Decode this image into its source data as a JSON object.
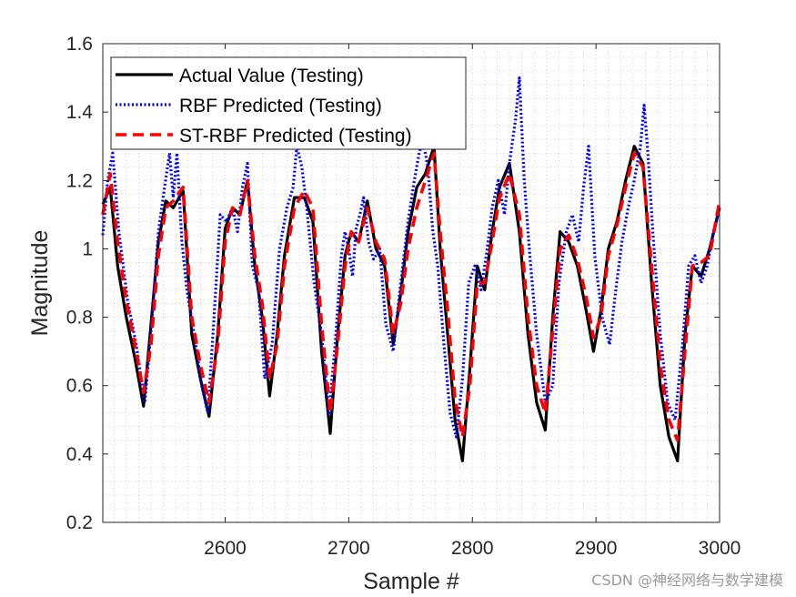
{
  "chart_data": {
    "type": "line",
    "title": "",
    "xlabel": "Sample #",
    "ylabel": "Magnitude",
    "xlim": [
      2501,
      3000
    ],
    "ylim": [
      0.2,
      1.6
    ],
    "x_ticks": [
      2600,
      2700,
      2800,
      2900,
      3000
    ],
    "y_ticks": [
      0.2,
      0.4,
      0.6,
      0.8,
      1,
      1.2,
      1.4,
      1.6
    ],
    "x_tick_labels": [
      "2600",
      "2700",
      "2800",
      "2900",
      "3000"
    ],
    "y_tick_labels": [
      "0.2",
      "0.4",
      "0.6",
      "0.8",
      "1",
      "1.2",
      "1.4",
      "1.6"
    ],
    "grid": "minor dotted",
    "legend_position": "top-left",
    "series": [
      {
        "name": "Actual Value (Testing)",
        "color": "#000000",
        "style": "solid",
        "x": [
          2501,
          2507,
          2513,
          2520,
          2527,
          2534,
          2540,
          2546,
          2552,
          2558,
          2566,
          2573,
          2580,
          2587,
          2594,
          2600,
          2606,
          2612,
          2618,
          2624,
          2630,
          2636,
          2642,
          2648,
          2656,
          2664,
          2671,
          2678,
          2685,
          2691,
          2697,
          2702,
          2708,
          2715,
          2722,
          2729,
          2736,
          2742,
          2748,
          2755,
          2762,
          2769,
          2774,
          2780,
          2786,
          2792,
          2798,
          2804,
          2810,
          2816,
          2822,
          2830,
          2838,
          2845,
          2852,
          2859,
          2865,
          2871,
          2878,
          2885,
          2892,
          2898,
          2904,
          2910,
          2917,
          2924,
          2931,
          2938,
          2945,
          2952,
          2959,
          2966,
          2972,
          2978,
          2985,
          2992,
          3000
        ],
        "y": [
          1.13,
          1.18,
          0.95,
          0.8,
          0.68,
          0.54,
          0.78,
          1.02,
          1.14,
          1.12,
          1.17,
          0.75,
          0.62,
          0.51,
          0.75,
          1.06,
          1.12,
          1.1,
          1.2,
          0.95,
          0.8,
          0.57,
          0.75,
          0.98,
          1.15,
          1.15,
          1.08,
          0.7,
          0.46,
          0.75,
          0.98,
          1.05,
          1.02,
          1.14,
          1.0,
          0.95,
          0.72,
          0.87,
          1.05,
          1.18,
          1.22,
          1.3,
          1.0,
          0.75,
          0.5,
          0.38,
          0.65,
          0.95,
          0.88,
          1.05,
          1.18,
          1.25,
          1.05,
          0.75,
          0.55,
          0.47,
          0.8,
          1.05,
          1.02,
          0.95,
          0.82,
          0.7,
          0.82,
          1.0,
          1.08,
          1.2,
          1.3,
          1.25,
          0.9,
          0.6,
          0.45,
          0.38,
          0.75,
          0.95,
          0.92,
          1.0,
          1.12
        ]
      },
      {
        "name": "RBF Predicted (Testing)",
        "color": "#0000ff",
        "style": "dotted",
        "x": [
          2501,
          2505,
          2509,
          2514,
          2521,
          2528,
          2535,
          2541,
          2546,
          2551,
          2555,
          2558,
          2561,
          2565,
          2569,
          2575,
          2581,
          2586,
          2591,
          2596,
          2601,
          2606,
          2610,
          2614,
          2618,
          2622,
          2627,
          2632,
          2638,
          2644,
          2650,
          2655,
          2658,
          2662,
          2666,
          2672,
          2678,
          2684,
          2689,
          2694,
          2697,
          2700,
          2703,
          2706,
          2709,
          2712,
          2716,
          2720,
          2725,
          2730,
          2736,
          2742,
          2748,
          2753,
          2757,
          2760,
          2764,
          2768,
          2772,
          2777,
          2782,
          2787,
          2792,
          2797,
          2802,
          2807,
          2812,
          2816,
          2821,
          2826,
          2830,
          2835,
          2838,
          2842,
          2846,
          2852,
          2859,
          2865,
          2870,
          2876,
          2881,
          2886,
          2890,
          2894,
          2899,
          2905,
          2911,
          2916,
          2921,
          2926,
          2931,
          2936,
          2939,
          2942,
          2946,
          2952,
          2958,
          2964,
          2970,
          2975,
          2980,
          2985,
          2990,
          2995,
          3000
        ],
        "y": [
          1.04,
          1.2,
          1.28,
          1.05,
          0.85,
          0.72,
          0.55,
          0.8,
          1.05,
          1.18,
          1.28,
          1.15,
          1.28,
          1.02,
          0.88,
          0.75,
          0.6,
          0.52,
          0.8,
          1.1,
          1.08,
          1.12,
          1.05,
          1.18,
          1.25,
          0.95,
          0.88,
          0.62,
          0.72,
          1.0,
          1.12,
          1.18,
          1.3,
          1.24,
          1.12,
          0.9,
          0.75,
          0.52,
          0.72,
          0.98,
          1.05,
          1.0,
          0.92,
          1.06,
          1.1,
          1.15,
          1.02,
          0.97,
          1.0,
          0.78,
          0.7,
          0.9,
          1.08,
          1.2,
          1.28,
          1.32,
          1.24,
          1.05,
          0.95,
          0.72,
          0.52,
          0.45,
          0.62,
          0.9,
          0.95,
          0.88,
          1.0,
          1.12,
          1.2,
          1.1,
          1.25,
          1.38,
          1.5,
          1.2,
          1.0,
          0.75,
          0.55,
          0.6,
          0.9,
          1.05,
          1.1,
          1.02,
          1.18,
          1.3,
          0.98,
          0.8,
          0.72,
          0.88,
          1.02,
          1.12,
          1.2,
          1.3,
          1.42,
          1.28,
          1.05,
          0.75,
          0.55,
          0.5,
          0.72,
          0.95,
          0.98,
          0.9,
          0.95,
          1.05,
          1.12
        ]
      },
      {
        "name": "ST-RBF Predicted (Testing)",
        "color": "#ff0000",
        "style": "dashed",
        "x": [
          2501,
          2507,
          2513,
          2520,
          2527,
          2534,
          2540,
          2546,
          2552,
          2558,
          2566,
          2573,
          2580,
          2587,
          2594,
          2600,
          2606,
          2612,
          2618,
          2624,
          2630,
          2636,
          2642,
          2648,
          2656,
          2664,
          2671,
          2678,
          2685,
          2691,
          2697,
          2702,
          2708,
          2715,
          2722,
          2729,
          2736,
          2742,
          2748,
          2755,
          2762,
          2769,
          2774,
          2780,
          2786,
          2792,
          2798,
          2804,
          2810,
          2816,
          2822,
          2830,
          2838,
          2845,
          2852,
          2859,
          2865,
          2871,
          2878,
          2885,
          2892,
          2898,
          2904,
          2910,
          2917,
          2924,
          2931,
          2938,
          2945,
          2952,
          2959,
          2966,
          2972,
          2978,
          2985,
          2992,
          3000
        ],
        "y": [
          1.1,
          1.22,
          1.02,
          0.85,
          0.72,
          0.58,
          0.72,
          0.98,
          1.12,
          1.14,
          1.18,
          0.8,
          0.66,
          0.55,
          0.72,
          1.02,
          1.12,
          1.1,
          1.2,
          0.98,
          0.84,
          0.62,
          0.72,
          0.95,
          1.12,
          1.17,
          1.12,
          0.78,
          0.52,
          0.72,
          0.95,
          1.05,
          1.02,
          1.12,
          1.02,
          0.97,
          0.75,
          0.84,
          1.0,
          1.12,
          1.2,
          1.28,
          1.05,
          0.82,
          0.56,
          0.45,
          0.6,
          0.9,
          0.9,
          1.02,
          1.15,
          1.22,
          1.1,
          0.8,
          0.6,
          0.52,
          0.76,
          1.0,
          1.04,
          0.97,
          0.86,
          0.74,
          0.8,
          0.98,
          1.07,
          1.18,
          1.28,
          1.24,
          0.95,
          0.66,
          0.5,
          0.44,
          0.7,
          0.95,
          0.96,
          0.98,
          1.14
        ]
      }
    ]
  },
  "watermark": "CSDN @神经网络与数学建模"
}
